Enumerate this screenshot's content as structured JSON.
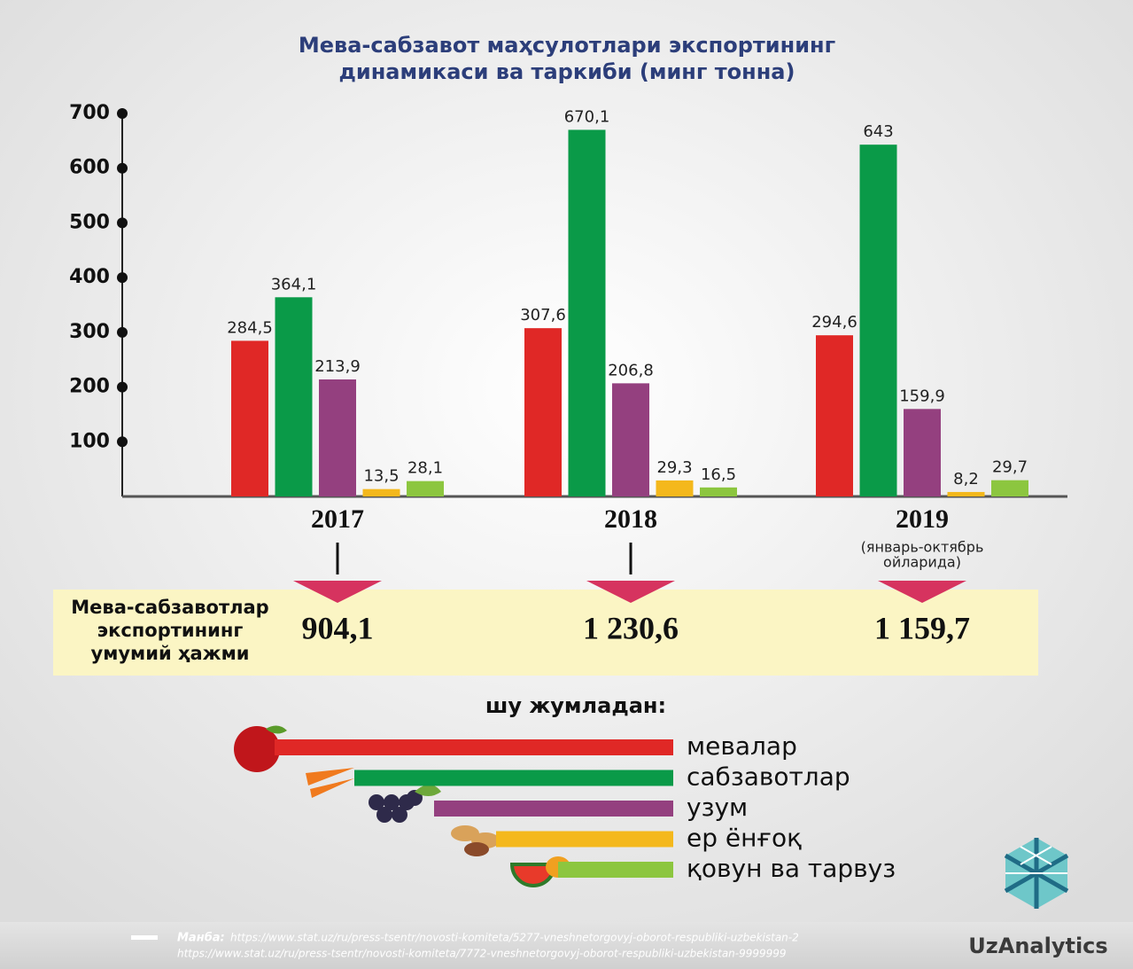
{
  "chart_data": {
    "type": "bar",
    "title": [
      "Мева-сабзавот маҳсулотлари экспортининг",
      "динамикаси ва таркиби (минг тонна)"
    ],
    "categories": [
      "2017",
      "2018",
      "2019"
    ],
    "period_note": [
      "(январь-октябрь",
      "ойларида)"
    ],
    "ylim": [
      0,
      700
    ],
    "yticks": [
      100,
      200,
      300,
      400,
      500,
      600,
      700
    ],
    "legend_title": "шу жумладан:",
    "series": [
      {
        "name": "мевалар",
        "color": "#e02826",
        "values": [
          284.5,
          307.6,
          294.6
        ],
        "value_labels": [
          "284,5",
          "307,6",
          "294,6"
        ]
      },
      {
        "name": "сабзавотлар",
        "color": "#0a9a48",
        "values": [
          364.1,
          670.1,
          643
        ],
        "value_labels": [
          "364,1",
          "670,1",
          "643"
        ]
      },
      {
        "name": "узум",
        "color": "#94407f",
        "values": [
          213.9,
          206.8,
          159.9
        ],
        "value_labels": [
          "213,9",
          "206,8",
          "159,9"
        ]
      },
      {
        "name": "ер ёнғоқ",
        "color": "#f4b81c",
        "values": [
          13.5,
          29.3,
          8.2
        ],
        "value_labels": [
          "13,5",
          "29,3",
          "8,2"
        ]
      },
      {
        "name": "қовун ва тарвуз",
        "color": "#8cc63f",
        "values": [
          28.1,
          16.5,
          29.7
        ],
        "value_labels": [
          "28,1",
          "16,5",
          "29,7"
        ]
      }
    ],
    "total_label": [
      "Мева-сабзавотлар",
      "экспортининг",
      "умумий ҳажми"
    ],
    "totals": [
      904.1,
      1230.6,
      1159.7
    ],
    "total_labels": [
      "904,1",
      "1 230,6",
      "1 159,7"
    ],
    "source_label": "Манба:",
    "sources": [
      "https://www.stat.uz/ru/press-tsentr/novosti-komiteta/5277-vneshnetorgovyj-oborot-respubliki-uzbekistan-2",
      "https://www.stat.uz/ru/press-tsentr/novosti-komiteta/7772-vneshnetorgovyj-oborot-respubliki-uzbekistan-9999999"
    ],
    "brand": "UzAnalytics"
  }
}
